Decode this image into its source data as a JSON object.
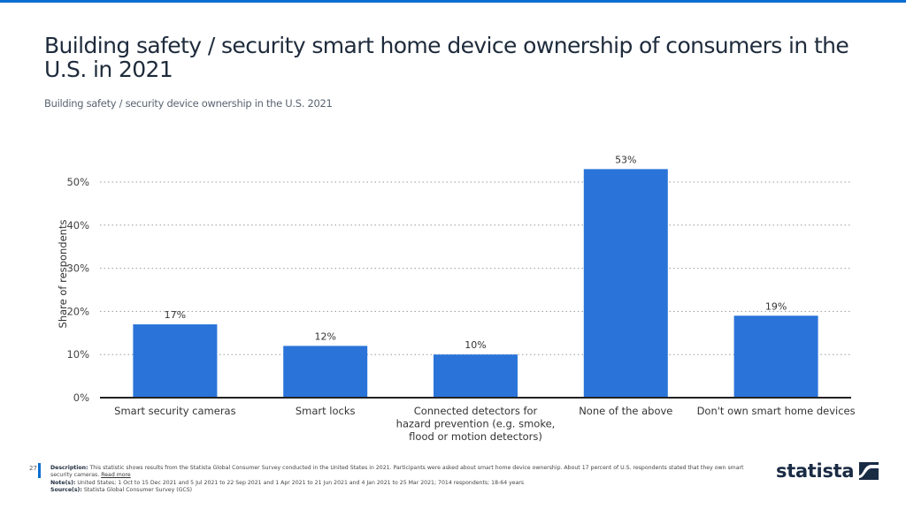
{
  "header": {
    "title": "Building safety / security smart home device ownership of consumers in the U.S. in 2021",
    "subtitle": "Building safety / security device ownership in the U.S. 2021"
  },
  "chart_data": {
    "type": "bar",
    "title": "Building safety / security smart home device ownership of consumers in the U.S. in 2021",
    "subtitle": "Building safety / security device ownership in the U.S. 2021",
    "xlabel": "",
    "ylabel": "Share of respondents",
    "ylim": [
      0,
      50
    ],
    "yticks": [
      0,
      10,
      20,
      30,
      40,
      50
    ],
    "ytick_labels": [
      "0%",
      "10%",
      "20%",
      "30%",
      "40%",
      "50%"
    ],
    "grid": true,
    "categories": [
      [
        "Smart security cameras"
      ],
      [
        "Smart locks"
      ],
      [
        "Connected detectors for",
        "hazard prevention (e.g. smoke,",
        "flood or motion detectors)"
      ],
      [
        "None of the above"
      ],
      [
        "Don't own smart home devices"
      ]
    ],
    "values": [
      17,
      12,
      10,
      53,
      19
    ],
    "value_labels": [
      "17%",
      "12%",
      "10%",
      "53%",
      "19%"
    ],
    "bar_color": "#2a74d9"
  },
  "footer": {
    "page_number": "27",
    "description_label": "Description:",
    "description": "This statistic shows results from the Statista Global Consumer Survey conducted in the United States in 2021. Participants were asked about smart home device ownership. About 17 percent of U.S. respondents stated that they own smart security cameras.",
    "read_more": "Read more",
    "notes_label": "Note(s):",
    "notes": "United States; 1 Oct to 15 Dec 2021 and 5 Jul 2021 to 22 Sep 2021 and 1 Apr 2021 to 21 Jun 2021 and 4 Jan 2021 to 25 Mar 2021; 7014 respondents; 18-64 years",
    "source_label": "Source(s):",
    "source": "Statista Global Consumer Survey (GCS)"
  },
  "brand": {
    "logo_text": "statista",
    "accent_color": "#0a6ed1"
  }
}
